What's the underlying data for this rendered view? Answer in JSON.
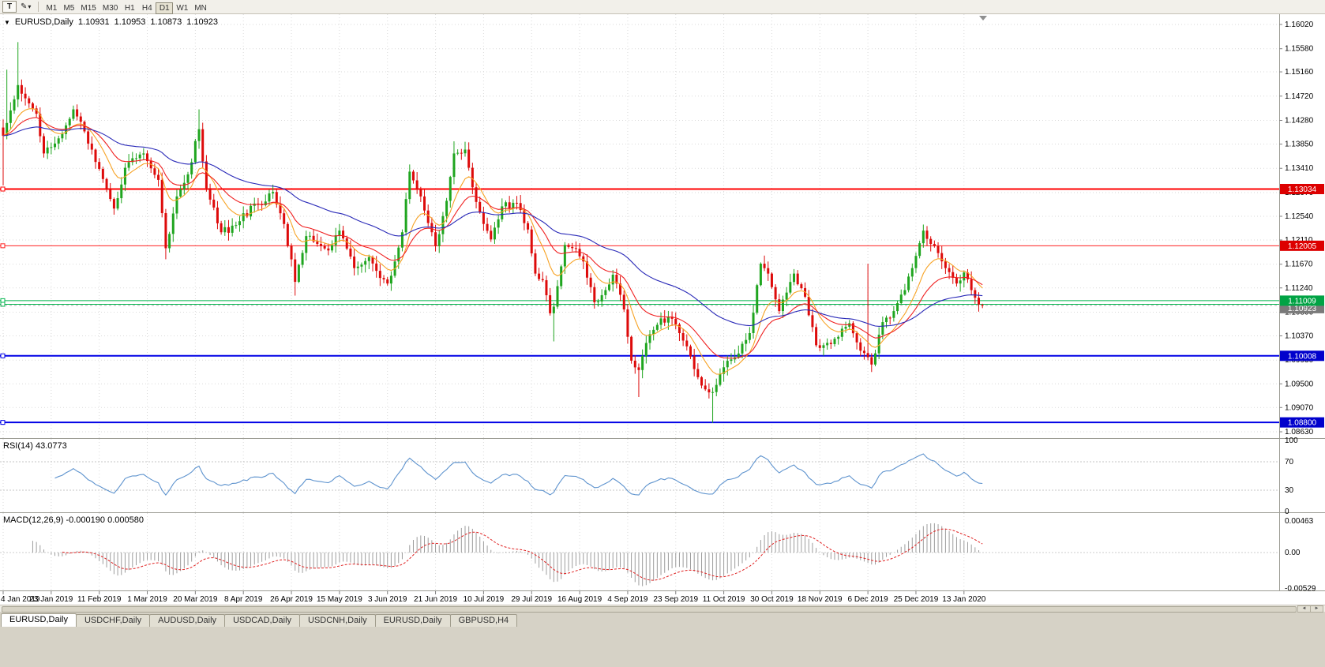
{
  "icons": {
    "collapse": "▼",
    "pencil": "✎",
    "dropdown": "▾",
    "left_arrow": "◄",
    "right_arrow": "►"
  },
  "toolbar": {
    "text_tool_label": "T",
    "timeframes": [
      "M1",
      "M5",
      "M15",
      "M30",
      "H1",
      "H4",
      "D1",
      "W1",
      "MN"
    ],
    "active_timeframe": "D1"
  },
  "chart": {
    "title_symbol": "EURUSD,Daily",
    "ohlc": {
      "open": "1.10931",
      "high": "1.10953",
      "low": "1.10873",
      "close": "1.10923"
    },
    "price_axis": [
      "1.16020",
      "1.15580",
      "1.15160",
      "1.14720",
      "1.14280",
      "1.13850",
      "1.13410",
      "1.12970",
      "1.12540",
      "1.12110",
      "1.11670",
      "1.11240",
      "1.10800",
      "1.10370",
      "1.09930",
      "1.09500",
      "1.09070",
      "1.08630"
    ],
    "hlines": [
      {
        "price": 1.13034,
        "color": "#FF0000",
        "width": 2,
        "label": "1.13034",
        "label_bg": "#DD0000"
      },
      {
        "price": 1.12005,
        "color": "#FF2222",
        "width": 1,
        "label": "1.12005",
        "label_bg": "#DD0000"
      },
      {
        "price": 1.11009,
        "color": "#00B44C",
        "width": 1,
        "label": "1.11009",
        "label_bg": "#00A344"
      },
      {
        "price": 1.10943,
        "color": "#00B44C",
        "width": 1
      },
      {
        "price": 1.10008,
        "color": "#0000E6",
        "width": 2,
        "label": "1.10008",
        "label_bg": "#0000CC"
      },
      {
        "price": 1.088,
        "color": "#0000E6",
        "width": 2,
        "label": "1.08800",
        "label_bg": "#0000CC"
      }
    ],
    "current_price": {
      "label": "1.10923",
      "price": 1.10923,
      "label_bg": "#7A7A7A"
    },
    "dates": [
      "4 Jan 2019",
      "23 Jan 2019",
      "11 Feb 2019",
      "1 Mar 2019",
      "20 Mar 2019",
      "8 Apr 2019",
      "26 Apr 2019",
      "15 May 2019",
      "3 Jun 2019",
      "21 Jun 2019",
      "10 Jul 2019",
      "29 Jul 2019",
      "16 Aug 2019",
      "4 Sep 2019",
      "23 Sep 2019",
      "11 Oct 2019",
      "30 Oct 2019",
      "18 Nov 2019",
      "6 Dec 2019",
      "25 Dec 2019",
      "13 Jan 2020"
    ]
  },
  "chart_data": {
    "type": "candlestick",
    "symbol": "EURUSD",
    "timeframe": "Daily",
    "visible_range": {
      "start": "4 Jan 2019",
      "end": "13 Jan 2020"
    },
    "price_range": [
      1.0863,
      1.1602
    ],
    "candle_count": 266,
    "up_color": "#1FA51F",
    "down_color": "#DD0A0A",
    "close_waypoints": [
      [
        0,
        1.14
      ],
      [
        2,
        1.1446
      ],
      [
        4,
        1.1492
      ],
      [
        6,
        1.1468
      ],
      [
        9,
        1.144
      ],
      [
        11,
        1.1368
      ],
      [
        14,
        1.1386
      ],
      [
        19,
        1.1448
      ],
      [
        22,
        1.1408
      ],
      [
        26,
        1.134
      ],
      [
        30,
        1.1268
      ],
      [
        33,
        1.1342
      ],
      [
        38,
        1.1368
      ],
      [
        42,
        1.132
      ],
      [
        44,
        1.1196
      ],
      [
        47,
        1.129
      ],
      [
        50,
        1.133
      ],
      [
        53,
        1.1412
      ],
      [
        55,
        1.1305
      ],
      [
        59,
        1.1225
      ],
      [
        63,
        1.1238
      ],
      [
        68,
        1.1277
      ],
      [
        73,
        1.1298
      ],
      [
        76,
        1.124
      ],
      [
        79,
        1.1135
      ],
      [
        82,
        1.1218
      ],
      [
        86,
        1.12
      ],
      [
        88,
        1.1192
      ],
      [
        91,
        1.1228
      ],
      [
        95,
        1.116
      ],
      [
        99,
        1.118
      ],
      [
        101,
        1.1155
      ],
      [
        104,
        1.1132
      ],
      [
        106,
        1.1172
      ],
      [
        108,
        1.1225
      ],
      [
        110,
        1.1335
      ],
      [
        113,
        1.129
      ],
      [
        117,
        1.12
      ],
      [
        120,
        1.1282
      ],
      [
        122,
        1.1368
      ],
      [
        125,
        1.1375
      ],
      [
        128,
        1.128
      ],
      [
        132,
        1.1212
      ],
      [
        135,
        1.1272
      ],
      [
        139,
        1.1278
      ],
      [
        142,
        1.123
      ],
      [
        144,
        1.115
      ],
      [
        146,
        1.1138
      ],
      [
        148,
        1.1078
      ],
      [
        149,
        1.109
      ],
      [
        152,
        1.1202
      ],
      [
        155,
        1.1195
      ],
      [
        157,
        1.1172
      ],
      [
        160,
        1.1098
      ],
      [
        163,
        1.112
      ],
      [
        165,
        1.1148
      ],
      [
        168,
        1.1085
      ],
      [
        170,
        1.0992
      ],
      [
        172,
        1.0975
      ],
      [
        175,
        1.104
      ],
      [
        180,
        1.1072
      ],
      [
        183,
        1.1042
      ],
      [
        185,
        1.1018
      ],
      [
        188,
        1.0962
      ],
      [
        190,
        1.094
      ],
      [
        192,
        1.0935
      ],
      [
        195,
        1.098
      ],
      [
        199,
        1.1005
      ],
      [
        202,
        1.1042
      ],
      [
        205,
        1.1168
      ],
      [
        207,
        1.115
      ],
      [
        210,
        1.1082
      ],
      [
        214,
        1.115
      ],
      [
        217,
        1.1108
      ],
      [
        220,
        1.102
      ],
      [
        224,
        1.1022
      ],
      [
        227,
        1.105
      ],
      [
        229,
        1.106
      ],
      [
        232,
        1.101
      ],
      [
        235,
        1.0985
      ],
      [
        238,
        1.1062
      ],
      [
        241,
        1.1082
      ],
      [
        244,
        1.112
      ],
      [
        246,
        1.116
      ],
      [
        249,
        1.1228
      ],
      [
        252,
        1.12
      ],
      [
        255,
        1.116
      ],
      [
        258,
        1.1132
      ],
      [
        260,
        1.1152
      ],
      [
        262,
        1.112
      ],
      [
        264,
        1.1094
      ],
      [
        265,
        1.10923
      ]
    ],
    "wick_overrides": [
      {
        "i": 0,
        "low": 1.131
      },
      {
        "i": 1,
        "high": 1.152
      },
      {
        "i": 4,
        "high": 1.157
      },
      {
        "i": 44,
        "low": 1.1176
      },
      {
        "i": 53,
        "high": 1.1448
      },
      {
        "i": 79,
        "low": 1.111
      },
      {
        "i": 110,
        "high": 1.1348
      },
      {
        "i": 122,
        "high": 1.139
      },
      {
        "i": 149,
        "low": 1.1027
      },
      {
        "i": 172,
        "low": 1.0926
      },
      {
        "i": 192,
        "low": 1.0879
      },
      {
        "i": 234,
        "high": 1.1168
      },
      {
        "i": 249,
        "high": 1.1239
      }
    ],
    "last_candle": {
      "open": 1.10931,
      "high": 1.10953,
      "low": 1.10873,
      "close": 1.10923
    },
    "overlays": [
      {
        "name": "ma-fast",
        "type": "ema",
        "period": 10,
        "color": "#F7A325"
      },
      {
        "name": "ma-mid",
        "type": "ema",
        "period": 21,
        "color": "#F02020"
      },
      {
        "name": "ma-slow",
        "type": "ema",
        "period": 55,
        "color": "#2A2AB8"
      }
    ]
  },
  "rsi": {
    "label": "RSI(14) 43.0773",
    "period": 14,
    "last_value": 43.0773,
    "axis_labels": [
      "100",
      "70",
      "30",
      "0"
    ],
    "levels": [
      70,
      30
    ],
    "line_color": "#5E93CE"
  },
  "macd": {
    "label": "MACD(12,26,9) -0.000190 0.000580",
    "fast": 12,
    "slow": 26,
    "signal_period": 9,
    "values": {
      "main": "-0.000190",
      "signal": "0.000580"
    },
    "axis": [
      {
        "label": "0.00463",
        "value": 0.00463
      },
      {
        "label": "0.00",
        "value": 0
      },
      {
        "label": "-0.00529",
        "value": -0.00529
      }
    ],
    "histogram_color": "#9C9C9C",
    "signal_color": "#E02020"
  },
  "tabs": {
    "items": [
      "EURUSD,Daily",
      "USDCHF,Daily",
      "AUDUSD,Daily",
      "USDCAD,Daily",
      "USDCNH,Daily",
      "EURUSD,Daily",
      "GBPUSD,H4"
    ],
    "active_index": 0
  }
}
